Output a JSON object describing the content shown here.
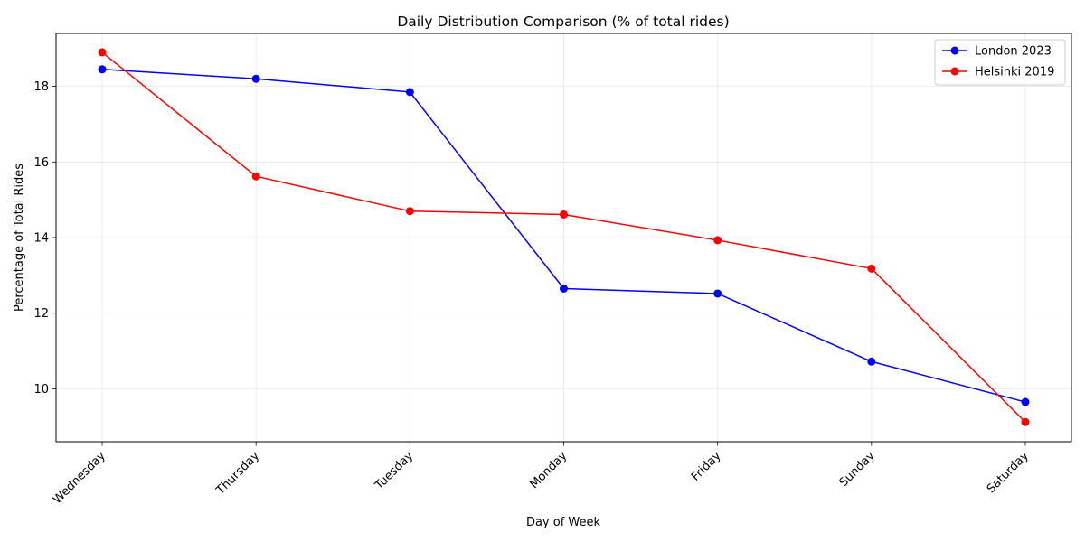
{
  "chart_data": {
    "type": "line",
    "title": "Daily Distribution Comparison (% of total rides)",
    "xlabel": "Day of Week",
    "ylabel": "Percentage of Total Rides",
    "categories": [
      "Wednesday",
      "Thursday",
      "Tuesday",
      "Monday",
      "Friday",
      "Sunday",
      "Saturday"
    ],
    "series": [
      {
        "name": "London 2023",
        "color": "#0000ff",
        "values": [
          18.45,
          18.2,
          17.85,
          12.65,
          12.52,
          10.72,
          9.65
        ]
      },
      {
        "name": "Helsinki 2019",
        "color": "#ff0000",
        "values": [
          18.9,
          15.62,
          14.7,
          14.61,
          13.93,
          13.18,
          9.12
        ]
      }
    ],
    "ylim": [
      8.6,
      19.4
    ],
    "yticks": [
      10,
      12,
      14,
      16,
      18
    ],
    "grid": true,
    "legend_position": "top-right"
  }
}
